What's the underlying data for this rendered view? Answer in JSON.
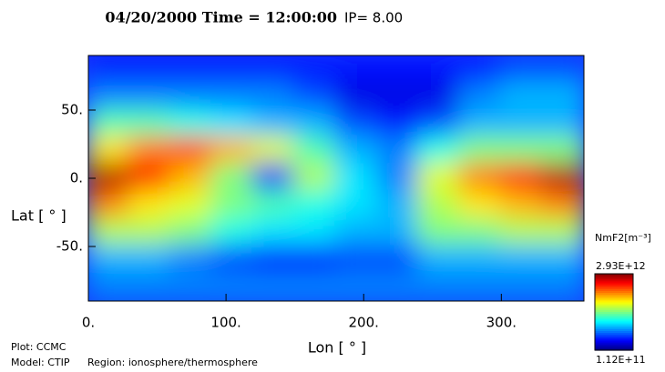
{
  "chart_data": {
    "type": "contour",
    "title": "04/20/2000 Time = 12:00:00",
    "subtitle": "IP= 8.00",
    "x_label": "Lon [ ° ]",
    "y_label": "Lat [ ° ]",
    "colorbar_label": "NmF2[m⁻³]",
    "footer": [
      "Plot: CCMC",
      "Model: CTIP",
      "Region: ionosphere/thermosphere"
    ],
    "xlim": [
      0,
      360
    ],
    "ylim": [
      -90,
      90
    ],
    "xticks": [
      {
        "value": 0,
        "label": "0."
      },
      {
        "value": 100,
        "label": "100."
      },
      {
        "value": 200,
        "label": "200."
      },
      {
        "value": 300,
        "label": "300."
      }
    ],
    "yticks": [
      {
        "value": 50,
        "label": "50."
      },
      {
        "value": 0,
        "label": "0."
      },
      {
        "value": -50,
        "label": "-50."
      }
    ],
    "clim": [
      {
        "value": 112000000000.0,
        "label": "1.12E+11"
      },
      {
        "value": 2930000000000.0,
        "label": "2.93E+12"
      }
    ],
    "colormap": "jet",
    "x": [
      15,
      45,
      75,
      105,
      135,
      165,
      195,
      225,
      255,
      285,
      315,
      345
    ],
    "y": [
      80,
      60,
      40,
      20,
      0,
      -20,
      -40,
      -60,
      -80
    ],
    "z": [
      [
        530000000000.0,
        530000000000.0,
        530000000000.0,
        530000000000.0,
        530000000000.0,
        530000000000.0,
        530000000000.0,
        530000000000.0,
        530000000000.0,
        530000000000.0,
        670000000000.0,
        670000000000.0
      ],
      [
        820000000000.0,
        820000000000.0,
        820000000000.0,
        820000000000.0,
        820000000000.0,
        670000000000.0,
        390000000000.0,
        390000000000.0,
        390000000000.0,
        820000000000.0,
        960000000000.0,
        960000000000.0
      ],
      [
        1380000000000.0,
        1380000000000.0,
        1240000000000.0,
        1100000000000.0,
        960000000000.0,
        960000000000.0,
        670000000000.0,
        530000000000.0,
        670000000000.0,
        960000000000.0,
        960000000000.0,
        960000000000.0
      ],
      [
        1940000000000.0,
        2230000000000.0,
        2370000000000.0,
        2080000000000.0,
        1800000000000.0,
        1380000000000.0,
        960000000000.0,
        820000000000.0,
        1240000000000.0,
        1520000000000.0,
        1520000000000.0,
        1520000000000.0
      ],
      [
        2790000000000.0,
        2510000000000.0,
        2080000000000.0,
        1520000000000.0,
        530000000000.0,
        1660000000000.0,
        1100000000000.0,
        820000000000.0,
        1800000000000.0,
        2230000000000.0,
        2510000000000.0,
        2790000000000.0
      ],
      [
        2230000000000.0,
        1940000000000.0,
        1800000000000.0,
        1520000000000.0,
        1380000000000.0,
        1240000000000.0,
        1100000000000.0,
        960000000000.0,
        1660000000000.0,
        1940000000000.0,
        2080000000000.0,
        2230000000000.0
      ],
      [
        1660000000000.0,
        1660000000000.0,
        1520000000000.0,
        1240000000000.0,
        1100000000000.0,
        1100000000000.0,
        960000000000.0,
        960000000000.0,
        1520000000000.0,
        1520000000000.0,
        1660000000000.0,
        1660000000000.0
      ],
      [
        960000000000.0,
        960000000000.0,
        820000000000.0,
        670000000000.0,
        530000000000.0,
        530000000000.0,
        670000000000.0,
        670000000000.0,
        960000000000.0,
        960000000000.0,
        960000000000.0,
        960000000000.0
      ],
      [
        820000000000.0,
        820000000000.0,
        820000000000.0,
        820000000000.0,
        820000000000.0,
        820000000000.0,
        820000000000.0,
        820000000000.0,
        820000000000.0,
        820000000000.0,
        820000000000.0,
        820000000000.0
      ]
    ]
  }
}
